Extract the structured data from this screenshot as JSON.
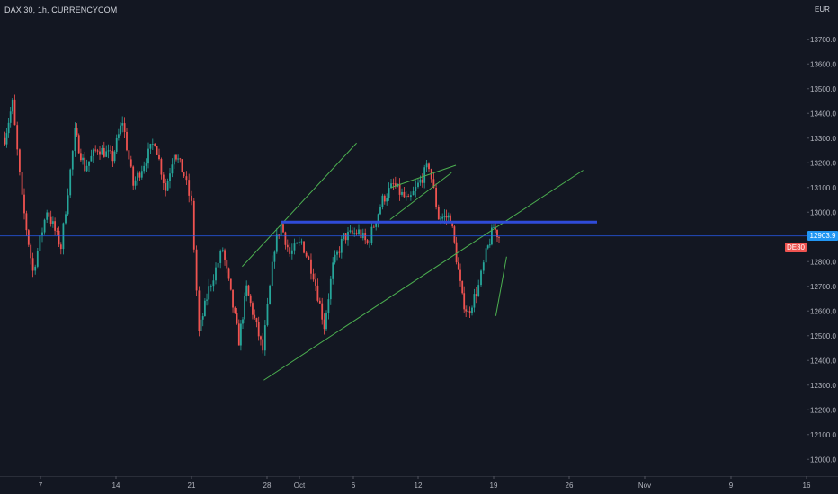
{
  "header": {
    "symbol": "DAX 30, 1h, CURRENCYCOM",
    "currency": "EUR"
  },
  "price_tags": {
    "last_price": "12903.9",
    "ticker": "DE30"
  },
  "colors": {
    "background": "#131722",
    "up": "#26a69a",
    "down": "#ef5350",
    "trendline": "#4caf50",
    "resistance": "#2f4bd9",
    "last_price_line": "#2962ff",
    "last_price_tag": "#2196f3",
    "ticker_tag": "#ef5350"
  },
  "chart_data": {
    "type": "candlestick",
    "ylim": [
      11930,
      13770
    ],
    "y_ticks": [
      "12000.0",
      "12100.0",
      "12200.0",
      "12300.0",
      "12400.0",
      "12500.0",
      "12600.0",
      "12700.0",
      "12800.0",
      "12900.0",
      "13000.0",
      "13100.0",
      "13200.0",
      "13300.0",
      "13400.0",
      "13500.0",
      "13600.0",
      "13700.0"
    ],
    "x_ticks": [
      {
        "label": "7",
        "day": 7
      },
      {
        "label": "14",
        "day": 14
      },
      {
        "label": "21",
        "day": 21
      },
      {
        "label": "28",
        "day": 28
      },
      {
        "label": "Oct",
        "day": 31
      },
      {
        "label": "6",
        "day": 36
      },
      {
        "label": "12",
        "day": 42
      },
      {
        "label": "19",
        "day": 49
      },
      {
        "label": "26",
        "day": 56
      },
      {
        "label": "Nov",
        "day": 63
      },
      {
        "label": "9",
        "day": 71
      },
      {
        "label": "16",
        "day": 78
      }
    ],
    "xlim_days": [
      3.5,
      80.5
    ],
    "price_path": [
      [
        3.7,
        13300
      ],
      [
        4.4,
        13440
      ],
      [
        5.3,
        13050
      ],
      [
        6.3,
        12760
      ],
      [
        7.6,
        13010
      ],
      [
        8.9,
        12860
      ],
      [
        10.2,
        13320
      ],
      [
        11.1,
        13180
      ],
      [
        12.3,
        13260
      ],
      [
        13.7,
        13220
      ],
      [
        14.6,
        13370
      ],
      [
        15.6,
        13110
      ],
      [
        17.6,
        13290
      ],
      [
        18.6,
        13090
      ],
      [
        19.4,
        13250
      ],
      [
        20.3,
        13150
      ],
      [
        21.0,
        13030
      ],
      [
        21.7,
        12510
      ],
      [
        22.6,
        12690
      ],
      [
        23.9,
        12850
      ],
      [
        25.4,
        12480
      ],
      [
        26.1,
        12690
      ],
      [
        27.6,
        12440
      ],
      [
        28.7,
        12860
      ],
      [
        29.3,
        12950
      ],
      [
        30.1,
        12830
      ],
      [
        31.2,
        12880
      ],
      [
        32.3,
        12750
      ],
      [
        33.3,
        12540
      ],
      [
        34.1,
        12780
      ],
      [
        35.1,
        12900
      ],
      [
        36.5,
        12920
      ],
      [
        37.3,
        12870
      ],
      [
        38.7,
        13050
      ],
      [
        39.7,
        13110
      ],
      [
        41.1,
        13040
      ],
      [
        42.0,
        13110
      ],
      [
        43.0,
        13190
      ],
      [
        43.9,
        12980
      ],
      [
        45.0,
        12980
      ],
      [
        46.1,
        12650
      ],
      [
        46.6,
        12590
      ],
      [
        47.6,
        12700
      ],
      [
        48.3,
        12830
      ],
      [
        49.0,
        12940
      ],
      [
        49.5,
        12900
      ]
    ],
    "annotations": {
      "resistance_level": 12960,
      "last_price": 12903.9,
      "trendlines": [
        {
          "from": [
            25.7,
            12780
          ],
          "to": [
            36.3,
            13280
          ]
        },
        {
          "from": [
            27.7,
            12320
          ],
          "to": [
            57.3,
            13170
          ]
        },
        {
          "from": [
            39.5,
            13100
          ],
          "to": [
            45.5,
            13190
          ]
        },
        {
          "from": [
            39.4,
            12970
          ],
          "to": [
            45.1,
            13160
          ]
        },
        {
          "from": [
            49.2,
            12580
          ],
          "to": [
            50.2,
            12820
          ]
        }
      ]
    }
  }
}
